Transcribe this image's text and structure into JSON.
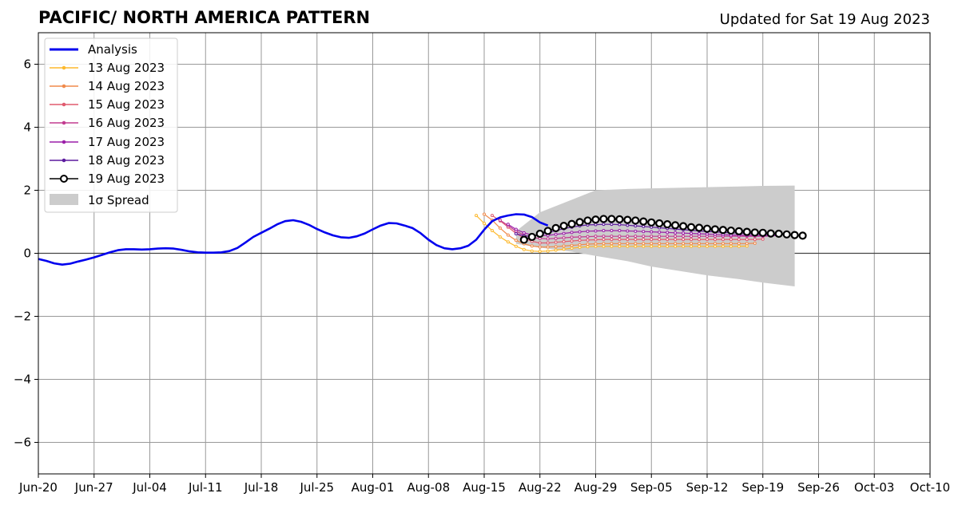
{
  "chart_data": {
    "type": "line",
    "title": "PACIFIC/ NORTH AMERICA PATTERN",
    "subtitle": "Updated for Sat 19 Aug 2023",
    "xlim": [
      "2023-06-20",
      "2023-10-10"
    ],
    "ylim": [
      -7,
      7
    ],
    "x_ticks": [
      "Jun-20",
      "Jun-27",
      "Jul-04",
      "Jul-11",
      "Jul-18",
      "Jul-25",
      "Aug-01",
      "Aug-08",
      "Aug-15",
      "Aug-22",
      "Aug-29",
      "Sep-05",
      "Sep-12",
      "Sep-19",
      "Sep-26",
      "Oct-03",
      "Oct-10"
    ],
    "y_ticks": [
      -6,
      -4,
      -2,
      0,
      2,
      4,
      6
    ],
    "grid": true,
    "legend_position": "top-left",
    "legend": {
      "analysis": "Analysis",
      "f13": "13 Aug 2023",
      "f14": "14 Aug 2023",
      "f15": "15 Aug 2023",
      "f16": "16 Aug 2023",
      "f17": "17 Aug 2023",
      "f18": "18 Aug 2023",
      "f19": "19 Aug 2023",
      "spread": "1σ Spread"
    },
    "analysis": {
      "name": "Analysis",
      "color": "#0000ee",
      "start": "2023-06-20",
      "values": [
        -0.18,
        -0.24,
        -0.32,
        -0.36,
        -0.33,
        -0.26,
        -0.2,
        -0.13,
        -0.05,
        0.03,
        0.1,
        0.13,
        0.13,
        0.12,
        0.13,
        0.15,
        0.16,
        0.15,
        0.11,
        0.06,
        0.03,
        0.02,
        0.02,
        0.03,
        0.07,
        0.17,
        0.34,
        0.52,
        0.65,
        0.78,
        0.92,
        1.02,
        1.05,
        1.0,
        0.9,
        0.77,
        0.66,
        0.57,
        0.51,
        0.49,
        0.54,
        0.63,
        0.76,
        0.88,
        0.96,
        0.95,
        0.88,
        0.8,
        0.64,
        0.43,
        0.26,
        0.16,
        0.13,
        0.16,
        0.24,
        0.43,
        0.75,
        1.02,
        1.14,
        1.2,
        1.24,
        1.23,
        1.15,
        0.98,
        0.88
      ]
    },
    "spread": {
      "name": "1σ Spread",
      "color": "#cccccc",
      "x": [
        "2023-08-19",
        "2023-08-22",
        "2023-08-26",
        "2023-08-29",
        "2023-09-02",
        "2023-09-05",
        "2023-09-09",
        "2023-09-12",
        "2023-09-16",
        "2023-09-19",
        "2023-09-23"
      ],
      "upper": [
        0.7,
        1.3,
        1.7,
        2.0,
        2.04,
        2.06,
        2.08,
        2.1,
        2.12,
        2.14,
        2.15
      ],
      "lower": [
        0.3,
        0.18,
        0.05,
        -0.08,
        -0.25,
        -0.42,
        -0.58,
        -0.7,
        -0.82,
        -0.93,
        -1.05
      ]
    },
    "forecasts": [
      {
        "name": "13 Aug 2023",
        "color": "#fdb92d",
        "start": "2023-08-14",
        "values": [
          1.2,
          0.95,
          0.72,
          0.52,
          0.36,
          0.22,
          0.12,
          0.07,
          0.06,
          0.07,
          0.1,
          0.13,
          0.16,
          0.19,
          0.21,
          0.22,
          0.22,
          0.22,
          0.22,
          0.22,
          0.22,
          0.22,
          0.22,
          0.22,
          0.22,
          0.22,
          0.22,
          0.22,
          0.22,
          0.22,
          0.22,
          0.22,
          0.22,
          0.22,
          0.23
        ]
      },
      {
        "name": "14 Aug 2023",
        "color": "#f08a4b",
        "start": "2023-08-15",
        "values": [
          1.24,
          1.05,
          0.8,
          0.58,
          0.41,
          0.3,
          0.23,
          0.2,
          0.2,
          0.21,
          0.23,
          0.25,
          0.27,
          0.29,
          0.3,
          0.31,
          0.31,
          0.31,
          0.31,
          0.31,
          0.31,
          0.31,
          0.31,
          0.31,
          0.31,
          0.31,
          0.31,
          0.31,
          0.31,
          0.31,
          0.31,
          0.31,
          0.31,
          0.31,
          0.32
        ]
      },
      {
        "name": "15 Aug 2023",
        "color": "#e05a6e",
        "start": "2023-08-16",
        "values": [
          1.2,
          1.03,
          0.83,
          0.63,
          0.48,
          0.38,
          0.33,
          0.33,
          0.35,
          0.37,
          0.39,
          0.41,
          0.42,
          0.43,
          0.44,
          0.44,
          0.44,
          0.44,
          0.44,
          0.44,
          0.44,
          0.44,
          0.44,
          0.44,
          0.44,
          0.44,
          0.44,
          0.44,
          0.44,
          0.44,
          0.44,
          0.44,
          0.44,
          0.44,
          0.45
        ]
      },
      {
        "name": "16 Aug 2023",
        "color": "#c23b8f",
        "start": "2023-08-17",
        "values": [
          1.05,
          0.88,
          0.7,
          0.58,
          0.5,
          0.47,
          0.46,
          0.47,
          0.49,
          0.51,
          0.52,
          0.53,
          0.54,
          0.54,
          0.54,
          0.54,
          0.54,
          0.54,
          0.54,
          0.54,
          0.54,
          0.54,
          0.54,
          0.54,
          0.54,
          0.54,
          0.54,
          0.54,
          0.54,
          0.54,
          0.54,
          0.54,
          0.54,
          0.54,
          0.55
        ]
      },
      {
        "name": "17 Aug 2023",
        "color": "#9b1fa8",
        "start": "2023-08-18",
        "values": [
          0.92,
          0.76,
          0.65,
          0.58,
          0.56,
          0.57,
          0.6,
          0.63,
          0.66,
          0.68,
          0.7,
          0.71,
          0.72,
          0.72,
          0.72,
          0.71,
          0.7,
          0.69,
          0.68,
          0.67,
          0.66,
          0.65,
          0.64,
          0.63,
          0.62,
          0.61,
          0.6,
          0.59,
          0.58,
          0.58,
          0.57,
          0.57,
          0.56,
          0.56,
          0.56
        ]
      },
      {
        "name": "18 Aug 2023",
        "color": "#5c1a9e",
        "start": "2023-08-19",
        "values": [
          0.62,
          0.55,
          0.55,
          0.6,
          0.66,
          0.72,
          0.78,
          0.83,
          0.87,
          0.9,
          0.91,
          0.92,
          0.92,
          0.91,
          0.89,
          0.87,
          0.85,
          0.83,
          0.81,
          0.79,
          0.77,
          0.75,
          0.73,
          0.71,
          0.69,
          0.68,
          0.66,
          0.65,
          0.64,
          0.63,
          0.62,
          0.61,
          0.6,
          0.6,
          0.6
        ]
      },
      {
        "name": "19 Aug 2023",
        "color": "#000000",
        "start": "2023-08-20",
        "markers": "open-circle",
        "values": [
          0.43,
          0.52,
          0.62,
          0.71,
          0.8,
          0.87,
          0.93,
          0.99,
          1.04,
          1.07,
          1.09,
          1.09,
          1.08,
          1.06,
          1.04,
          1.01,
          0.98,
          0.95,
          0.92,
          0.89,
          0.86,
          0.83,
          0.81,
          0.78,
          0.76,
          0.74,
          0.72,
          0.7,
          0.68,
          0.66,
          0.65,
          0.63,
          0.62,
          0.6,
          0.58,
          0.56
        ]
      }
    ]
  }
}
